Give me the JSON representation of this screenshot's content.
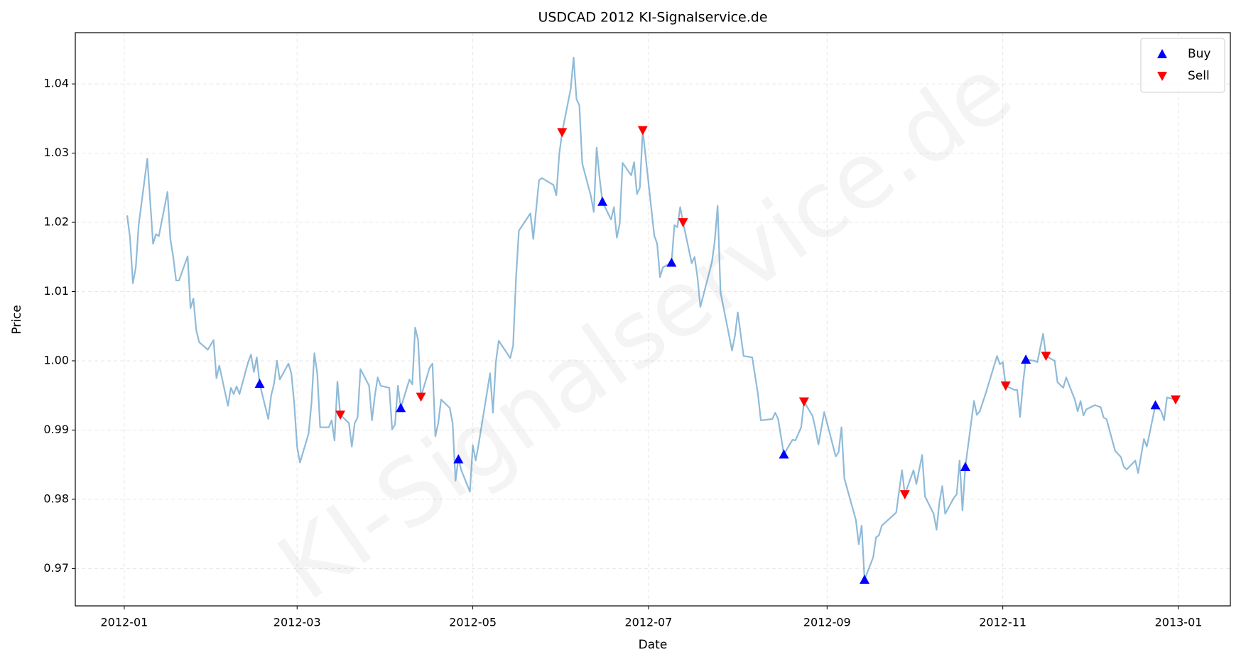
{
  "chart_data": {
    "type": "line",
    "title": "USDCAD 2012 KI-Signalservice.de",
    "xlabel": "Date",
    "ylabel": "Price",
    "watermark": "KI-Signalservice.de",
    "xlim": [
      "2011-12-15",
      "2013-01-19"
    ],
    "xticks": [
      "2012-01",
      "2012-03",
      "2012-05",
      "2012-07",
      "2012-09",
      "2012-11",
      "2013-01"
    ],
    "ylim": [
      0.9646,
      1.0474
    ],
    "yticks": [
      0.97,
      0.98,
      0.99,
      {
        "value": 1,
        "label": "1.00"
      },
      1.01,
      1.02,
      1.03,
      1.04
    ],
    "grid": true,
    "legend": "upper right",
    "series": [
      {
        "color": "#1f77b4",
        "marker": "line",
        "x": [
          "2012-01-02",
          "2012-01-03",
          "2012-01-04",
          "2012-01-05",
          "2012-01-06",
          "2012-01-09",
          "2012-01-11",
          "2012-01-12",
          "2012-01-13",
          "2012-01-16",
          "2012-01-17",
          "2012-01-18",
          "2012-01-19",
          "2012-01-20",
          "2012-01-23",
          "2012-01-24",
          "2012-01-25",
          "2012-01-26",
          "2012-01-27",
          "2012-01-30",
          "2012-02-01",
          "2012-02-02",
          "2012-02-03",
          "2012-02-06",
          "2012-02-07",
          "2012-02-08",
          "2012-02-09",
          "2012-02-10",
          "2012-02-13",
          "2012-02-14",
          "2012-02-15",
          "2012-02-16",
          "2012-02-17",
          "2012-02-20",
          "2012-02-21",
          "2012-02-22",
          "2012-02-23",
          "2012-02-24",
          "2012-02-27",
          "2012-02-28",
          "2012-02-29",
          "2012-03-01",
          "2012-03-02",
          "2012-03-05",
          "2012-03-06",
          "2012-03-07",
          "2012-03-08",
          "2012-03-09",
          "2012-03-12",
          "2012-03-13",
          "2012-03-14",
          "2012-03-15",
          "2012-03-16",
          "2012-03-19",
          "2012-03-20",
          "2012-03-21",
          "2012-03-22",
          "2012-03-23",
          "2012-03-26",
          "2012-03-27",
          "2012-03-28",
          "2012-03-29",
          "2012-03-30",
          "2012-04-02",
          "2012-04-03",
          "2012-04-04",
          "2012-04-05",
          "2012-04-06",
          "2012-04-09",
          "2012-04-10",
          "2012-04-11",
          "2012-04-12",
          "2012-04-13",
          "2012-04-16",
          "2012-04-17",
          "2012-04-18",
          "2012-04-19",
          "2012-04-20",
          "2012-04-23",
          "2012-04-24",
          "2012-04-25",
          "2012-04-26",
          "2012-04-27",
          "2012-04-30",
          "2012-05-01",
          "2012-05-02",
          "2012-05-03",
          "2012-05-07",
          "2012-05-08",
          "2012-05-09",
          "2012-05-10",
          "2012-05-14",
          "2012-05-15",
          "2012-05-16",
          "2012-05-17",
          "2012-05-21",
          "2012-05-22",
          "2012-05-24",
          "2012-05-25",
          "2012-05-29",
          "2012-05-30",
          "2012-05-31",
          "2012-06-01",
          "2012-06-04",
          "2012-06-05",
          "2012-06-06",
          "2012-06-07",
          "2012-06-08",
          "2012-06-11",
          "2012-06-12",
          "2012-06-13",
          "2012-06-14",
          "2012-06-15",
          "2012-06-18",
          "2012-06-19",
          "2012-06-20",
          "2012-06-21",
          "2012-06-22",
          "2012-06-25",
          "2012-06-26",
          "2012-06-27",
          "2012-06-28",
          "2012-06-29",
          "2012-07-03",
          "2012-07-04",
          "2012-07-05",
          "2012-07-06",
          "2012-07-09",
          "2012-07-10",
          "2012-07-11",
          "2012-07-12",
          "2012-07-13",
          "2012-07-16",
          "2012-07-17",
          "2012-07-18",
          "2012-07-19",
          "2012-07-23",
          "2012-07-24",
          "2012-07-25",
          "2012-07-26",
          "2012-07-30",
          "2012-07-31",
          "2012-08-01",
          "2012-08-03",
          "2012-08-06",
          "2012-08-08",
          "2012-08-09",
          "2012-08-13",
          "2012-08-14",
          "2012-08-15",
          "2012-08-17",
          "2012-08-20",
          "2012-08-21",
          "2012-08-23",
          "2012-08-24",
          "2012-08-27",
          "2012-08-28",
          "2012-08-29",
          "2012-08-31",
          "2012-09-04",
          "2012-09-05",
          "2012-09-06",
          "2012-09-07",
          "2012-09-11",
          "2012-09-12",
          "2012-09-13",
          "2012-09-14",
          "2012-09-17",
          "2012-09-18",
          "2012-09-19",
          "2012-09-20",
          "2012-09-24",
          "2012-09-25",
          "2012-09-27",
          "2012-09-28",
          "2012-10-01",
          "2012-10-02",
          "2012-10-04",
          "2012-10-05",
          "2012-10-08",
          "2012-10-09",
          "2012-10-10",
          "2012-10-11",
          "2012-10-12",
          "2012-10-15",
          "2012-10-16",
          "2012-10-17",
          "2012-10-18",
          "2012-10-19",
          "2012-10-22",
          "2012-10-23",
          "2012-10-24",
          "2012-10-26",
          "2012-10-30",
          "2012-10-31",
          "2012-11-01",
          "2012-11-02",
          "2012-11-05",
          "2012-11-06",
          "2012-11-07",
          "2012-11-08",
          "2012-11-09",
          "2012-11-12",
          "2012-11-13",
          "2012-11-15",
          "2012-11-16",
          "2012-11-19",
          "2012-11-20",
          "2012-11-22",
          "2012-11-23",
          "2012-11-26",
          "2012-11-27",
          "2012-11-28",
          "2012-11-29",
          "2012-11-30",
          "2012-12-03",
          "2012-12-05",
          "2012-12-06",
          "2012-12-07",
          "2012-12-10",
          "2012-12-12",
          "2012-12-13",
          "2012-12-14",
          "2012-12-17",
          "2012-12-18",
          "2012-12-20",
          "2012-12-21",
          "2012-12-24",
          "2012-12-26",
          "2012-12-27",
          "2012-12-28",
          "2012-12-31"
        ],
        "values": [
          1.021,
          1.0178,
          1.0112,
          1.0135,
          1.0196,
          1.0292,
          1.0169,
          1.0183,
          1.018,
          1.0244,
          1.0176,
          1.015,
          1.0116,
          1.0116,
          1.0151,
          1.0076,
          1.009,
          1.0044,
          1.0027,
          1.0016,
          1.003,
          0.9975,
          0.9993,
          0.9935,
          0.9961,
          0.9952,
          0.9963,
          0.9952,
          0.9998,
          1.0009,
          0.9984,
          1.0005,
          0.9967,
          0.9916,
          0.995,
          0.9967,
          1.0,
          0.9973,
          0.9996,
          0.9982,
          0.9939,
          0.9876,
          0.9853,
          0.9895,
          0.9939,
          1.0011,
          0.9982,
          0.9904,
          0.9904,
          0.9914,
          0.9885,
          0.997,
          0.9922,
          0.991,
          0.9876,
          0.991,
          0.9918,
          0.9988,
          0.9964,
          0.9914,
          0.995,
          0.9976,
          0.9964,
          0.9961,
          0.9901,
          0.9908,
          0.9964,
          0.9932,
          0.9973,
          0.9966,
          1.0048,
          1.003,
          0.9948,
          0.999,
          0.9996,
          0.9891,
          0.991,
          0.9944,
          0.9932,
          0.991,
          0.9827,
          0.9859,
          0.9842,
          0.9811,
          0.9878,
          0.9856,
          0.9879,
          0.9982,
          0.9925,
          0.9998,
          1.0029,
          1.0004,
          1.0022,
          1.0119,
          1.0188,
          1.0213,
          1.0176,
          1.0261,
          1.0264,
          1.0254,
          1.0239,
          1.0298,
          1.033,
          1.0393,
          1.0438,
          1.0378,
          1.0369,
          1.0285,
          1.0238,
          1.0215,
          1.0308,
          1.0265,
          1.023,
          1.0204,
          1.0222,
          1.0178,
          1.0198,
          1.0286,
          1.0268,
          1.0287,
          1.0241,
          1.025,
          1.0333,
          1.0181,
          1.0169,
          1.0121,
          1.0135,
          1.0142,
          1.0196,
          1.0193,
          1.0222,
          1.02,
          1.0141,
          1.015,
          1.0121,
          1.0078,
          1.0142,
          1.0173,
          1.0224,
          1.0099,
          1.0015,
          1.0036,
          1.007,
          1.0007,
          1.0005,
          0.9952,
          0.9914,
          0.9916,
          0.9925,
          0.9916,
          0.9865,
          0.9886,
          0.9885,
          0.9904,
          0.9941,
          0.992,
          0.9901,
          0.9879,
          0.9926,
          0.9862,
          0.9868,
          0.9904,
          0.983,
          0.977,
          0.9735,
          0.9762,
          0.9684,
          0.9716,
          0.9745,
          0.9748,
          0.9762,
          0.9777,
          0.9781,
          0.9842,
          0.9807,
          0.9842,
          0.9822,
          0.9864,
          0.9804,
          0.9779,
          0.9756,
          0.9796,
          0.9819,
          0.9779,
          0.9802,
          0.9807,
          0.9856,
          0.9784,
          0.9847,
          0.9942,
          0.9922,
          0.9927,
          0.9952,
          1.0007,
          0.9995,
          0.9998,
          0.9964,
          0.9958,
          0.9958,
          0.9919,
          0.9967,
          1.0002,
          1.0,
          0.9998,
          1.0039,
          1.0007,
          1.0,
          0.9969,
          0.9961,
          0.9976,
          0.9944,
          0.9927,
          0.9942,
          0.9921,
          0.993,
          0.9936,
          0.9933,
          0.9918,
          0.9916,
          0.987,
          0.9861,
          0.9847,
          0.9843,
          0.9856,
          0.9838,
          0.9887,
          0.9876,
          0.9936,
          0.9927,
          0.9914,
          0.9947,
          0.9944
        ]
      },
      {
        "name": "Buy",
        "color": "#0000ff",
        "marker": "triangle-up",
        "x": [
          "2012-02-17",
          "2012-04-06",
          "2012-04-26",
          "2012-06-15",
          "2012-07-09",
          "2012-08-17",
          "2012-09-14",
          "2012-10-19",
          "2012-11-09",
          "2012-12-24"
        ],
        "values": [
          0.9967,
          0.9932,
          0.9858,
          1.023,
          1.0142,
          0.9865,
          0.9684,
          0.9847,
          1.0002,
          0.9936
        ]
      },
      {
        "name": "Sell",
        "color": "#ff0000",
        "marker": "triangle-down",
        "x": [
          "2012-03-16",
          "2012-04-13",
          "2012-06-01",
          "2012-06-29",
          "2012-07-13",
          "2012-08-24",
          "2012-09-28",
          "2012-11-02",
          "2012-11-16",
          "2012-12-31"
        ],
        "values": [
          0.9922,
          0.9948,
          1.033,
          1.0333,
          1.02,
          0.9941,
          0.9807,
          0.9964,
          1.0007,
          0.9944
        ]
      }
    ]
  }
}
